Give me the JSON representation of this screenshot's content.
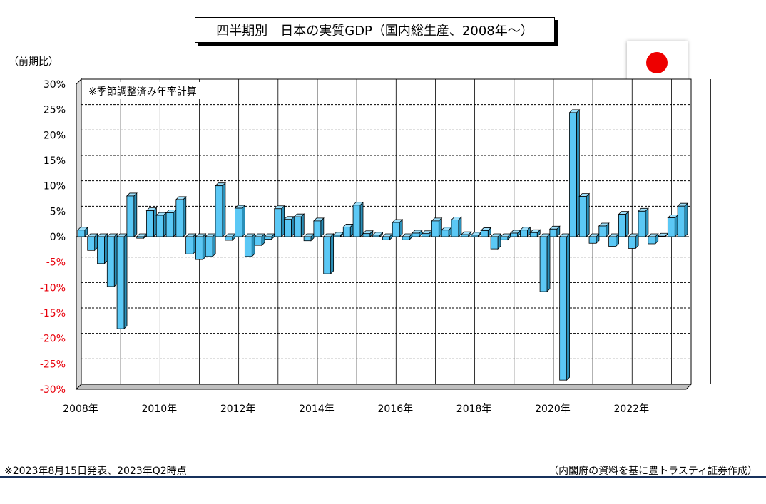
{
  "title": "四半期別　日本の実質GDP（国内総生産、2008年～）",
  "ylabel": "（前期比）",
  "flag_icon": "japan-flag-icon",
  "footer": {
    "left": "※2023年8月15日発表、2023年Q2時点",
    "right": "（内閣府の資料を基に豊トラスティ証券作成）"
  },
  "chart_data": {
    "type": "bar",
    "note": "※季節調整済み年率計算",
    "ylim": [
      -30,
      30
    ],
    "yticks": [
      "30%",
      "25%",
      "20%",
      "15%",
      "10%",
      "5%",
      "0%",
      "-5%",
      "-10%",
      "-15%",
      "-20%",
      "-25%",
      "-30%"
    ],
    "xticks": [
      "2008年",
      "2010年",
      "2012年",
      "2014年",
      "2016年",
      "2018年",
      "2020年",
      "2022年"
    ],
    "grid": true,
    "bar_color": "#5bc8f5",
    "negative_tick_color": "#e8000b",
    "categories": [
      "2008Q1",
      "2008Q2",
      "2008Q3",
      "2008Q4",
      "2009Q1",
      "2009Q2",
      "2009Q3",
      "2009Q4",
      "2010Q1",
      "2010Q2",
      "2010Q3",
      "2010Q4",
      "2011Q1",
      "2011Q2",
      "2011Q3",
      "2011Q4",
      "2012Q1",
      "2012Q2",
      "2012Q3",
      "2012Q4",
      "2013Q1",
      "2013Q2",
      "2013Q3",
      "2013Q4",
      "2014Q1",
      "2014Q2",
      "2014Q3",
      "2014Q4",
      "2015Q1",
      "2015Q2",
      "2015Q3",
      "2015Q4",
      "2016Q1",
      "2016Q2",
      "2016Q3",
      "2016Q4",
      "2017Q1",
      "2017Q2",
      "2017Q3",
      "2017Q4",
      "2018Q1",
      "2018Q2",
      "2018Q3",
      "2018Q4",
      "2019Q1",
      "2019Q2",
      "2019Q3",
      "2019Q4",
      "2020Q1",
      "2020Q2",
      "2020Q3",
      "2020Q4",
      "2021Q1",
      "2021Q2",
      "2021Q3",
      "2021Q4",
      "2022Q1",
      "2022Q2",
      "2022Q3",
      "2022Q4",
      "2023Q1",
      "2023Q2"
    ],
    "values": [
      1.3,
      -2.7,
      -5.3,
      -9.8,
      -18.1,
      8.0,
      -0.3,
      5.1,
      4.2,
      4.7,
      7.3,
      -3.4,
      -4.5,
      -3.9,
      10.0,
      -0.7,
      5.6,
      -3.9,
      -1.7,
      -0.5,
      5.5,
      3.4,
      3.9,
      -0.8,
      3.1,
      -7.3,
      0.3,
      1.9,
      6.2,
      0.6,
      0.3,
      -0.6,
      2.8,
      -0.6,
      0.7,
      0.6,
      3.1,
      1.3,
      3.3,
      0.4,
      0.3,
      1.2,
      -2.4,
      -0.6,
      0.7,
      1.3,
      0.8,
      -10.8,
      1.5,
      -28.2,
      24.4,
      7.9,
      -1.3,
      2.1,
      -1.9,
      4.4,
      -2.3,
      5.0,
      -1.4,
      0.1,
      3.7,
      6.0
    ]
  }
}
